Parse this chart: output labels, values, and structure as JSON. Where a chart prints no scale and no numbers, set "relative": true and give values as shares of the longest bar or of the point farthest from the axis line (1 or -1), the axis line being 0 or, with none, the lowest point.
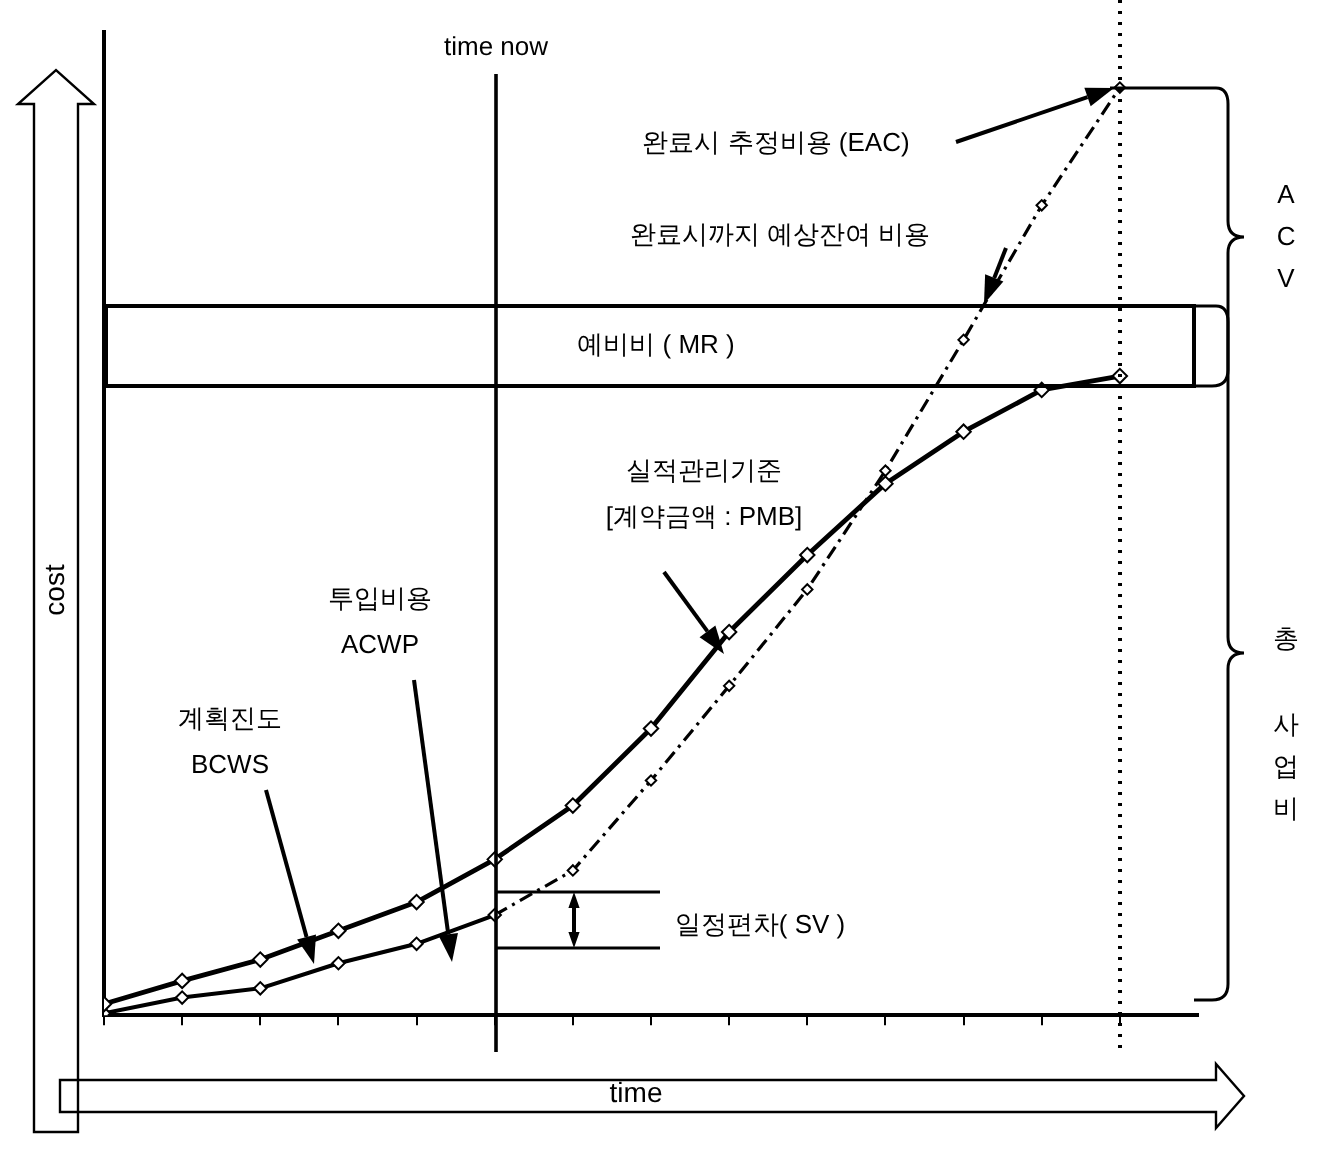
{
  "chart_data": {
    "type": "line",
    "relative": true,
    "xlabel": "time",
    "ylabel": "cost",
    "categories": [
      null,
      null,
      null,
      null,
      null,
      null,
      null,
      null,
      null,
      null,
      null,
      null,
      null,
      null
    ],
    "series": [
      {
        "color": "#000000",
        "values": [
          0.012,
          0.037,
          0.06,
          0.091,
          0.122,
          0.168,
          0.226,
          0.309,
          0.413,
          0.496,
          0.573,
          0.629,
          0.674,
          0.689
        ]
      },
      {
        "color": "#000000",
        "values": [
          0.002,
          0.019,
          0.029,
          0.056,
          0.077,
          0.108,
          null,
          null,
          null,
          null,
          null,
          null,
          null,
          null
        ]
      },
      {
        "color": "#000000",
        "line_style": "dashed",
        "values": [
          null,
          null,
          null,
          null,
          null,
          0.108,
          0.156,
          0.253,
          0.355,
          0.459,
          0.587,
          0.728,
          0.873,
          1.0
        ]
      }
    ],
    "marker": "diamond",
    "annotations": [
      "완료시 추정비용 (EAC)",
      "완료시까지 예상잔여 비용",
      "계획진도\nBCWS",
      "투입비용\nACWP",
      "실적관리기준\n[계약금액 : PMB]",
      "일정편차( SV )",
      "ACV",
      "총 사업비",
      "time now",
      "예비비 ( MR )"
    ]
  }
}
